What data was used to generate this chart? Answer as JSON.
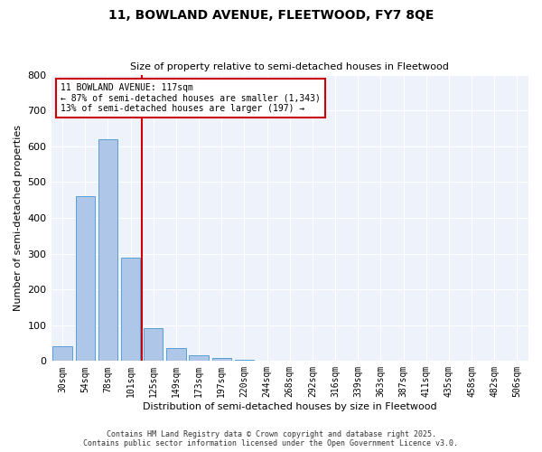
{
  "title1": "11, BOWLAND AVENUE, FLEETWOOD, FY7 8QE",
  "title2": "Size of property relative to semi-detached houses in Fleetwood",
  "xlabel": "Distribution of semi-detached houses by size in Fleetwood",
  "ylabel": "Number of semi-detached properties",
  "bar_labels": [
    "30sqm",
    "54sqm",
    "78sqm",
    "101sqm",
    "125sqm",
    "149sqm",
    "173sqm",
    "197sqm",
    "220sqm",
    "244sqm",
    "268sqm",
    "292sqm",
    "316sqm",
    "339sqm",
    "363sqm",
    "387sqm",
    "411sqm",
    "435sqm",
    "458sqm",
    "482sqm",
    "506sqm"
  ],
  "bar_values": [
    42,
    460,
    620,
    290,
    93,
    35,
    15,
    8,
    4,
    0,
    0,
    0,
    0,
    0,
    0,
    0,
    0,
    0,
    0,
    0,
    0
  ],
  "bar_color": "#aec6e8",
  "bar_edgecolor": "#5a9fd4",
  "vline_color": "#cc0000",
  "annotation_box_edgecolor": "#cc0000",
  "annotation_title": "11 BOWLAND AVENUE: 117sqm",
  "annotation_line1": "← 87% of semi-detached houses are smaller (1,343)",
  "annotation_line2": "13% of semi-detached houses are larger (197) →",
  "background_color": "#eef2fb",
  "ylim": [
    0,
    800
  ],
  "yticks": [
    0,
    100,
    200,
    300,
    400,
    500,
    600,
    700,
    800
  ],
  "footer1": "Contains HM Land Registry data © Crown copyright and database right 2025.",
  "footer2": "Contains public sector information licensed under the Open Government Licence v3.0."
}
